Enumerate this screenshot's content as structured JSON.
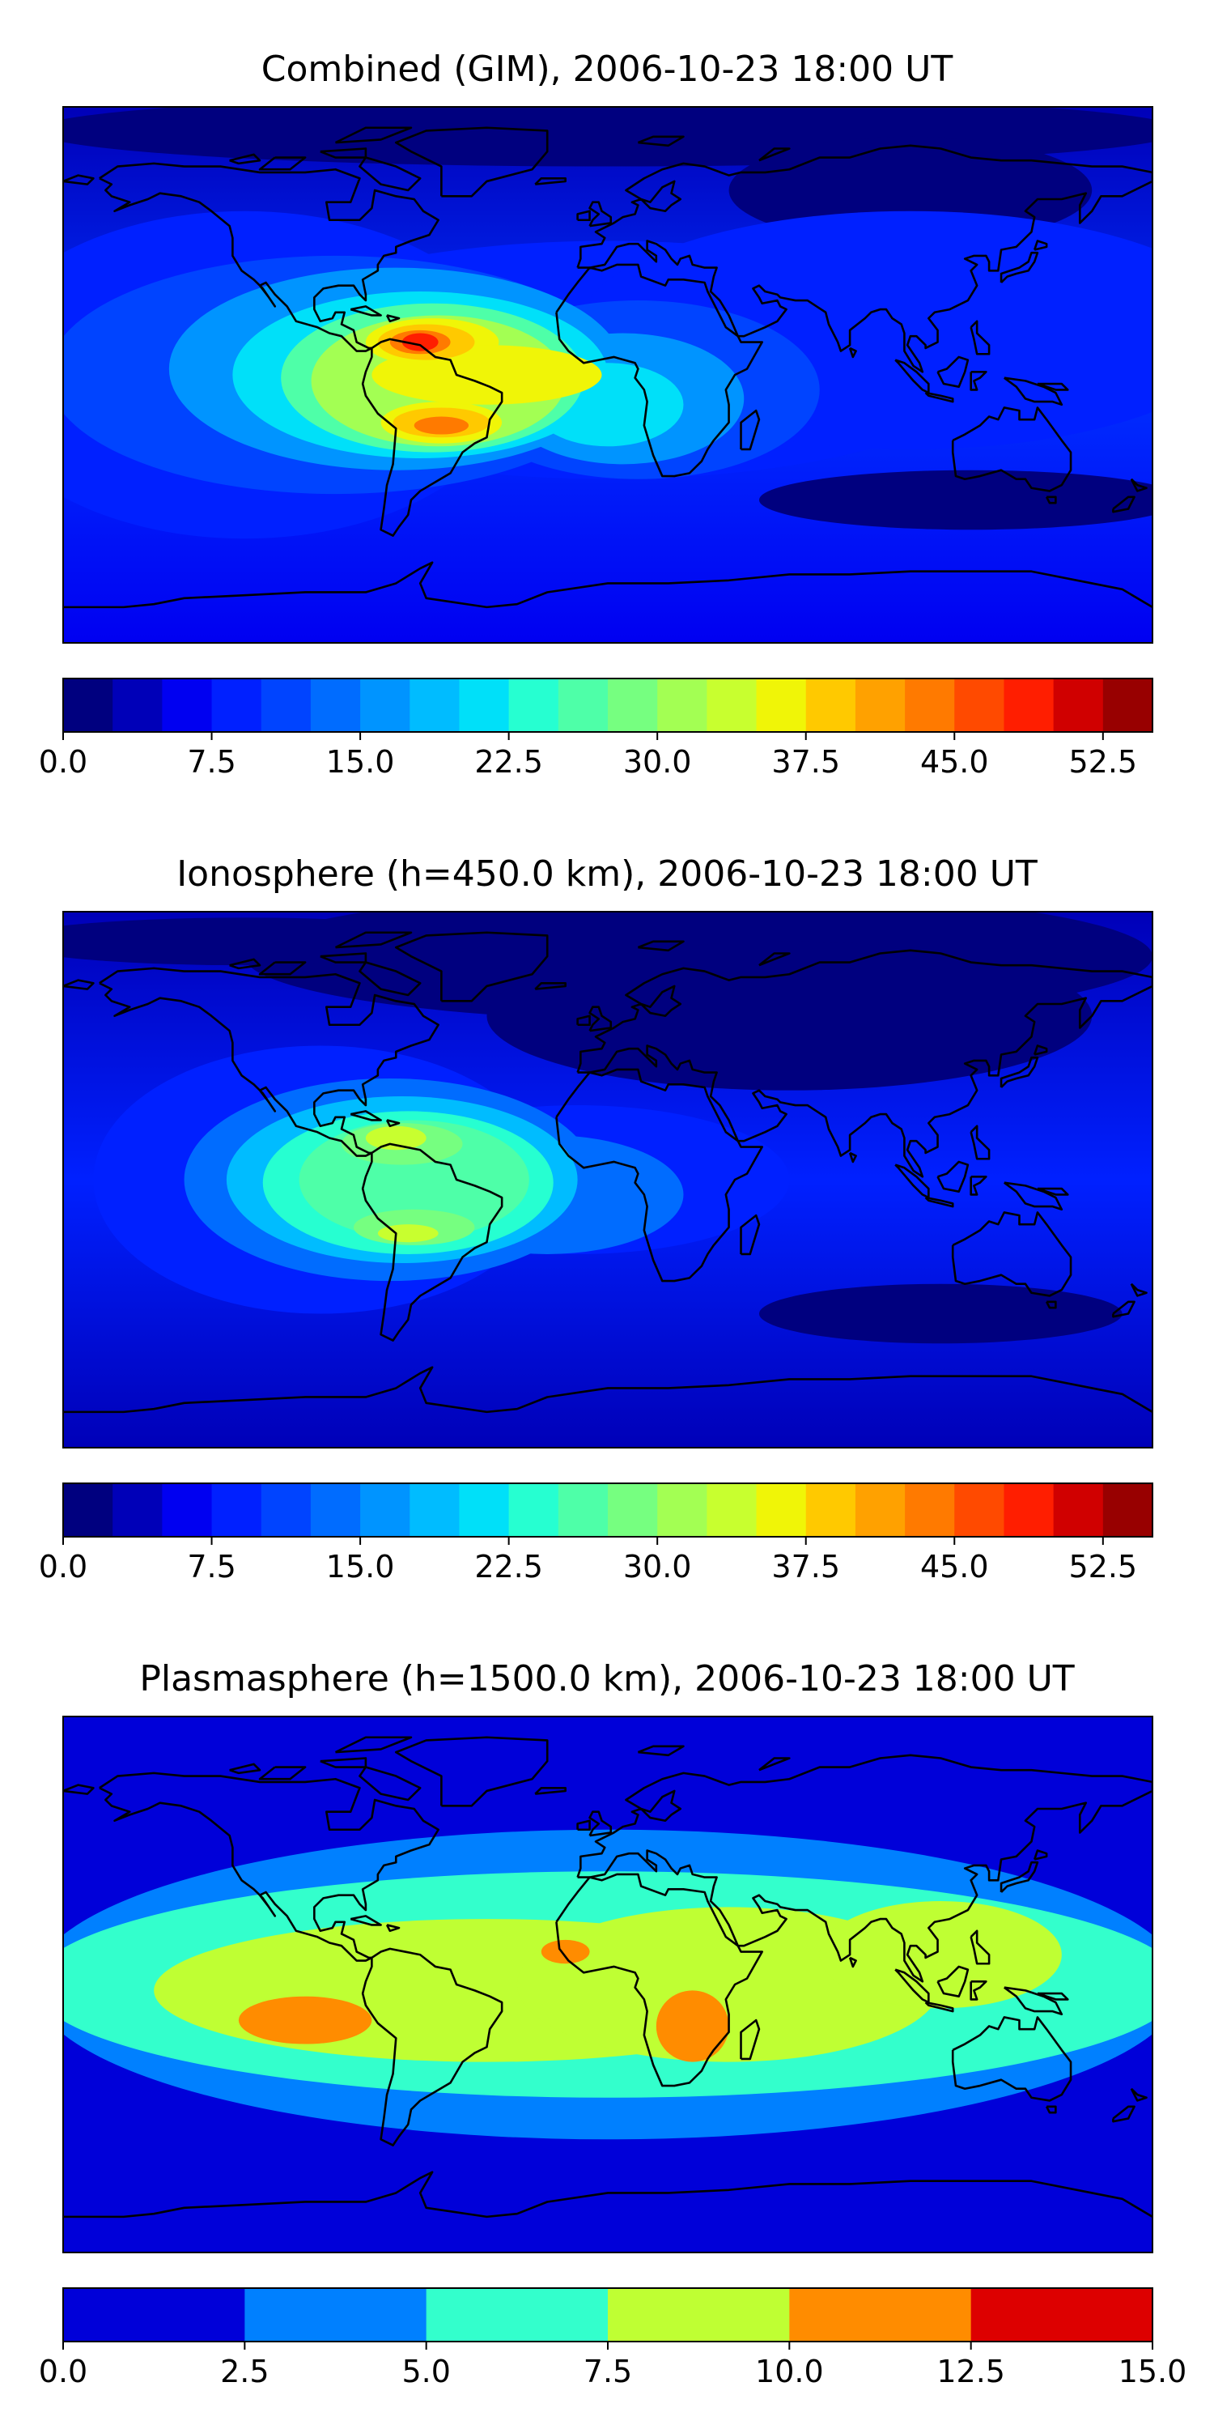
{
  "chart_data": [
    {
      "type": "heatmap",
      "title": "Combined (GIM), 2006-10-23 18:00 UT",
      "xlabel": "",
      "ylabel": "",
      "xlim": [
        -180,
        180
      ],
      "ylim": [
        -90,
        90
      ],
      "grid": false,
      "levels": [
        0,
        2.5,
        5,
        7.5,
        10,
        12.5,
        15,
        17.5,
        20,
        22.5,
        25,
        27.5,
        30,
        32.5,
        35,
        37.5,
        40,
        42.5,
        45,
        47.5,
        50,
        52.5,
        55
      ],
      "colorbar": {
        "orientation": "horizontal",
        "placement": "bottom",
        "range": [
          0,
          55
        ],
        "ticks": [
          0,
          7.5,
          15,
          22.5,
          30,
          37.5,
          45,
          52.5
        ],
        "tick_labels": [
          "0.0",
          "7.5",
          "15.0",
          "22.5",
          "30.0",
          "37.5",
          "45.0",
          "52.5"
        ],
        "colors": [
          "#00007f",
          "#0000b8",
          "#0000f1",
          "#0020ff",
          "#0044ff",
          "#006cff",
          "#0094ff",
          "#00bcff",
          "#00e0f9",
          "#26ffd1",
          "#4effa8",
          "#76ff80",
          "#a3ff53",
          "#c8ff2f",
          "#f0f507",
          "#ffc900",
          "#ffa100",
          "#ff7a00",
          "#ff4a00",
          "#ff1e00",
          "#d00000",
          "#980000"
        ]
      },
      "hotspots": [
        {
          "lon": -60,
          "lat": 11,
          "value": 50
        },
        {
          "lon": -55,
          "lat": -16,
          "value": 44
        },
        {
          "lon": -20,
          "lat": -2,
          "value": 30
        },
        {
          "lon": 22,
          "lat": -8,
          "value": 23
        }
      ],
      "lows": [
        {
          "lon": 120,
          "lat": -42,
          "value": 5
        },
        {
          "lon": 20,
          "lat": 78,
          "value": 3
        },
        {
          "lon": 100,
          "lat": 65,
          "value": 5
        }
      ]
    },
    {
      "type": "heatmap",
      "title": "Ionosphere  (h=450.0 km), 2006-10-23 18:00 UT",
      "xlabel": "",
      "ylabel": "",
      "xlim": [
        -180,
        180
      ],
      "ylim": [
        -90,
        90
      ],
      "grid": false,
      "levels": [
        0,
        2.5,
        5,
        7.5,
        10,
        12.5,
        15,
        17.5,
        20,
        22.5,
        25,
        27.5,
        30,
        32.5,
        35,
        37.5,
        40,
        42.5,
        45,
        47.5,
        50,
        52.5,
        55
      ],
      "colorbar": {
        "orientation": "horizontal",
        "placement": "bottom",
        "range": [
          0,
          55
        ],
        "ticks": [
          0,
          7.5,
          15,
          22.5,
          30,
          37.5,
          45,
          52.5
        ],
        "tick_labels": [
          "0.0",
          "7.5",
          "15.0",
          "22.5",
          "30.0",
          "37.5",
          "45.0",
          "52.5"
        ],
        "colors": [
          "#00007f",
          "#0000b8",
          "#0000f1",
          "#0020ff",
          "#0044ff",
          "#006cff",
          "#0094ff",
          "#00bcff",
          "#00e0f9",
          "#26ffd1",
          "#4effa8",
          "#76ff80",
          "#a3ff53",
          "#c8ff2f",
          "#f0f507",
          "#ffc900",
          "#ffa100",
          "#ff7a00",
          "#ff4a00",
          "#ff1e00",
          "#d00000",
          "#980000"
        ]
      },
      "hotspots": [
        {
          "lon": -70,
          "lat": 14,
          "value": 35
        },
        {
          "lon": -65,
          "lat": -18,
          "value": 31
        },
        {
          "lon": -25,
          "lat": 0,
          "value": 22
        }
      ],
      "lows": [
        {
          "lon": 60,
          "lat": 60,
          "value": 2
        },
        {
          "lon": 110,
          "lat": -45,
          "value": 3
        }
      ]
    },
    {
      "type": "heatmap",
      "title": "Plasmasphere (h=1500.0 km), 2006-10-23 18:00 UT",
      "xlabel": "",
      "ylabel": "",
      "xlim": [
        -180,
        180
      ],
      "ylim": [
        -90,
        90
      ],
      "grid": false,
      "levels": [
        0,
        2.5,
        5,
        7.5,
        10,
        12.5,
        15
      ],
      "colorbar": {
        "orientation": "horizontal",
        "placement": "bottom",
        "range": [
          0,
          15
        ],
        "ticks": [
          0,
          2.5,
          5,
          7.5,
          10,
          12.5,
          15
        ],
        "tick_labels": [
          "0.0",
          "2.5",
          "5.0",
          "7.5",
          "10.0",
          "12.5",
          "15.0"
        ],
        "colors": [
          "#0000d9",
          "#0080ff",
          "#33ffcc",
          "#bfff33",
          "#ff8c00",
          "#dd0000"
        ]
      },
      "hotspots": [
        {
          "lon": -100,
          "lat": -12,
          "value": 11.5
        },
        {
          "lon": -14,
          "lat": 11,
          "value": 11
        },
        {
          "lon": 28,
          "lat": -14,
          "value": 11.5
        }
      ],
      "lows": [
        {
          "lon": 162,
          "lat": 6,
          "value": 4
        }
      ]
    }
  ]
}
